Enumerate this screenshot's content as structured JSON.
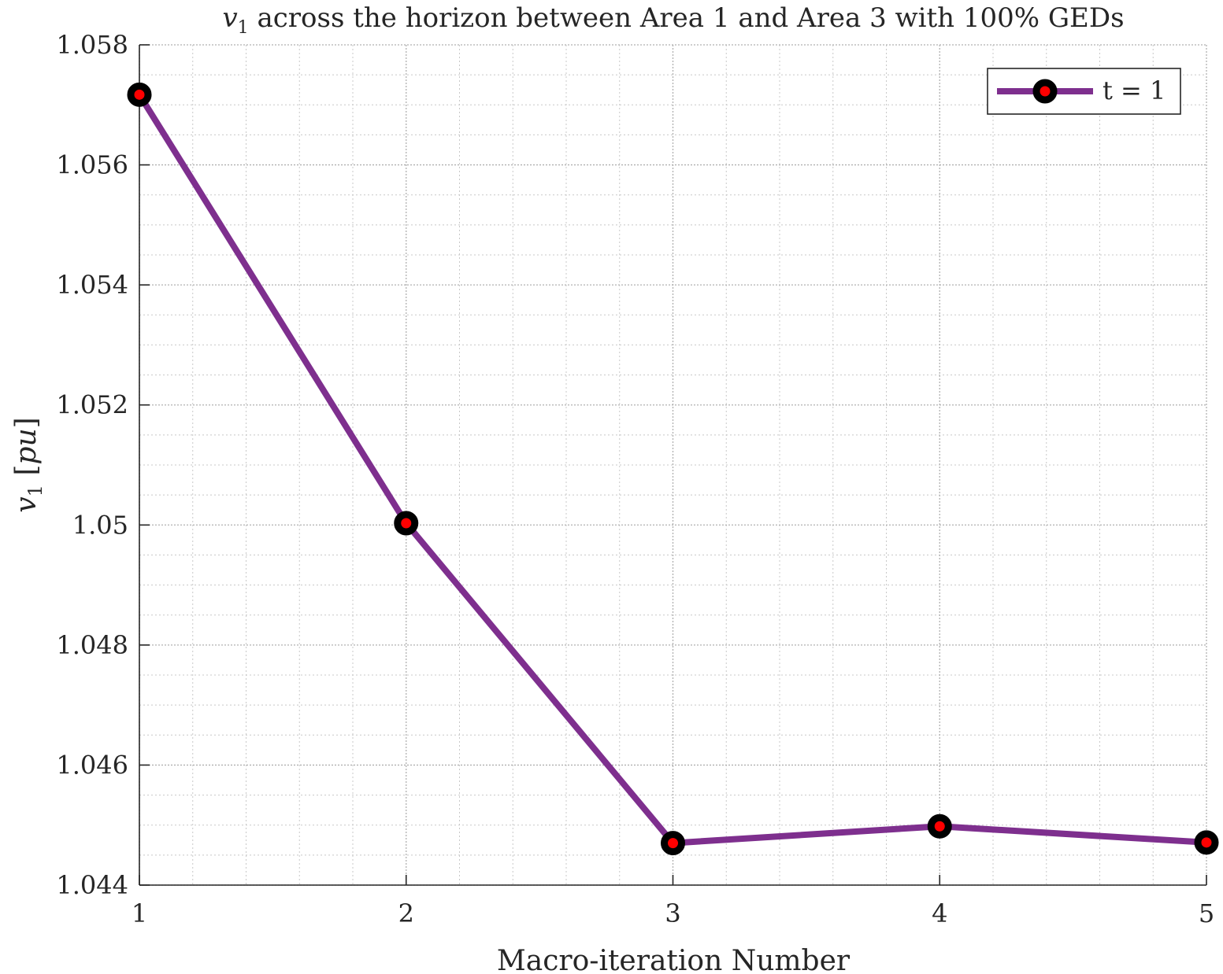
{
  "chart_data": {
    "type": "line",
    "title": {
      "var": "v",
      "sub": "1",
      "rest": " across the horizon between Area 1 and Area 3 with 100% GEDs"
    },
    "xlabel": "Macro-iteration Number",
    "ylabel": {
      "var": "v",
      "sub": "1",
      "unit_open": " [",
      "unit": "pu",
      "unit_close": "]"
    },
    "x": [
      1,
      2,
      3,
      4,
      5
    ],
    "series": [
      {
        "name": "t = 1",
        "values": [
          1.05717,
          1.05003,
          1.0447,
          1.04498,
          1.04471
        ],
        "line_color": "#7E2F8E",
        "marker_edge_color": "#000000",
        "marker_face_color": "#FF0000"
      }
    ],
    "xlim": [
      1,
      5
    ],
    "ylim": [
      1.044,
      1.058
    ],
    "xticks": [
      "1",
      "2",
      "3",
      "4",
      "5"
    ],
    "yticks": [
      "1.044",
      "1.046",
      "1.048",
      "1.05",
      "1.052",
      "1.054",
      "1.056",
      "1.058"
    ],
    "grid": true,
    "minor_grid": true,
    "legend_position": "top-right"
  }
}
